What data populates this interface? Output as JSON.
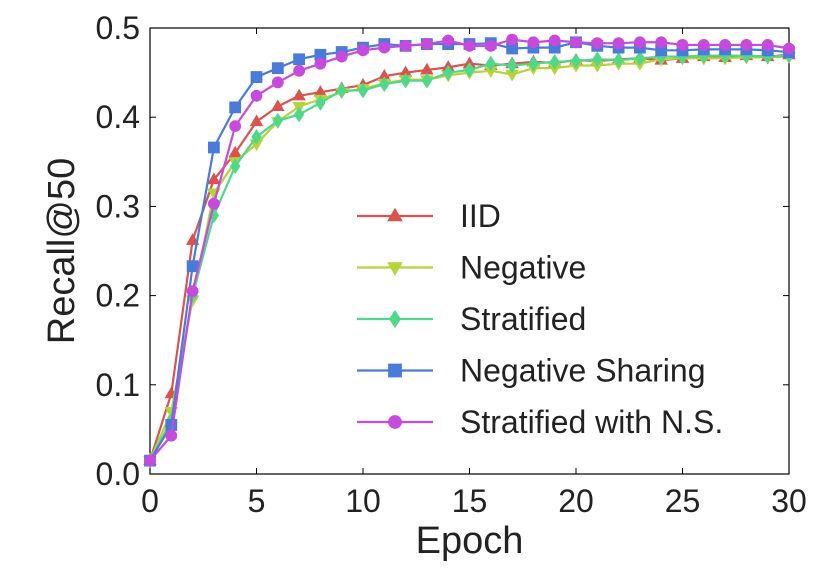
{
  "chart_data": {
    "type": "line",
    "title": "",
    "xlabel": "Epoch",
    "ylabel": "Recall@50",
    "xlim": [
      0,
      30
    ],
    "ylim": [
      0.0,
      0.5
    ],
    "xticks": [
      0,
      5,
      10,
      15,
      20,
      25,
      30
    ],
    "xtick_labels": [
      "0",
      "5",
      "10",
      "15",
      "20",
      "25",
      "30"
    ],
    "yticks": [
      0.0,
      0.1,
      0.2,
      0.3,
      0.4,
      0.5
    ],
    "ytick_labels": [
      "0.0",
      "0.1",
      "0.2",
      "0.3",
      "0.4",
      "0.5"
    ],
    "grid": false,
    "legend_position": "center-right",
    "x": [
      0,
      1,
      2,
      3,
      4,
      5,
      6,
      7,
      8,
      9,
      10,
      11,
      12,
      13,
      14,
      15,
      16,
      17,
      18,
      19,
      20,
      21,
      22,
      23,
      24,
      25,
      26,
      27,
      28,
      29,
      30
    ],
    "series": [
      {
        "name": "IID",
        "color": "#d9534f",
        "marker": "triangle-up",
        "values": [
          0.015,
          0.09,
          0.262,
          0.33,
          0.36,
          0.395,
          0.412,
          0.424,
          0.428,
          0.432,
          0.436,
          0.446,
          0.45,
          0.453,
          0.456,
          0.46,
          0.458,
          0.46,
          0.462,
          0.461,
          0.464,
          0.463,
          0.465,
          0.466,
          0.464,
          0.466,
          0.468,
          0.467,
          0.469,
          0.468,
          0.47
        ]
      },
      {
        "name": "Negative",
        "color": "#b5d33a",
        "marker": "triangle-down",
        "values": [
          0.015,
          0.07,
          0.195,
          0.315,
          0.35,
          0.37,
          0.395,
          0.412,
          0.42,
          0.428,
          0.432,
          0.438,
          0.442,
          0.442,
          0.447,
          0.45,
          0.452,
          0.448,
          0.455,
          0.455,
          0.458,
          0.458,
          0.46,
          0.46,
          0.465,
          0.466,
          0.466,
          0.466,
          0.467,
          0.467,
          0.468
        ]
      },
      {
        "name": "Stratified",
        "color": "#4fd88a",
        "marker": "diamond",
        "values": [
          0.015,
          0.06,
          0.2,
          0.29,
          0.345,
          0.378,
          0.396,
          0.403,
          0.416,
          0.43,
          0.43,
          0.437,
          0.441,
          0.441,
          0.45,
          0.453,
          0.46,
          0.458,
          0.46,
          0.462,
          0.463,
          0.465,
          0.464,
          0.466,
          0.468,
          0.468,
          0.469,
          0.469,
          0.469,
          0.468,
          0.469
        ]
      },
      {
        "name": "Negative Sharing",
        "color": "#4a7bd9",
        "marker": "square",
        "values": [
          0.015,
          0.055,
          0.233,
          0.366,
          0.411,
          0.445,
          0.455,
          0.465,
          0.47,
          0.473,
          0.478,
          0.482,
          0.48,
          0.482,
          0.482,
          0.482,
          0.483,
          0.477,
          0.478,
          0.478,
          0.484,
          0.48,
          0.478,
          0.478,
          0.475,
          0.475,
          0.476,
          0.476,
          0.476,
          0.475,
          0.473
        ]
      },
      {
        "name": "Stratified with N.S.",
        "color": "#c64bdc",
        "marker": "circle",
        "values": [
          0.015,
          0.043,
          0.205,
          0.303,
          0.39,
          0.424,
          0.439,
          0.452,
          0.46,
          0.468,
          0.475,
          0.478,
          0.48,
          0.482,
          0.486,
          0.48,
          0.48,
          0.487,
          0.484,
          0.486,
          0.484,
          0.483,
          0.483,
          0.484,
          0.484,
          0.481,
          0.481,
          0.481,
          0.481,
          0.481,
          0.477
        ]
      }
    ]
  }
}
